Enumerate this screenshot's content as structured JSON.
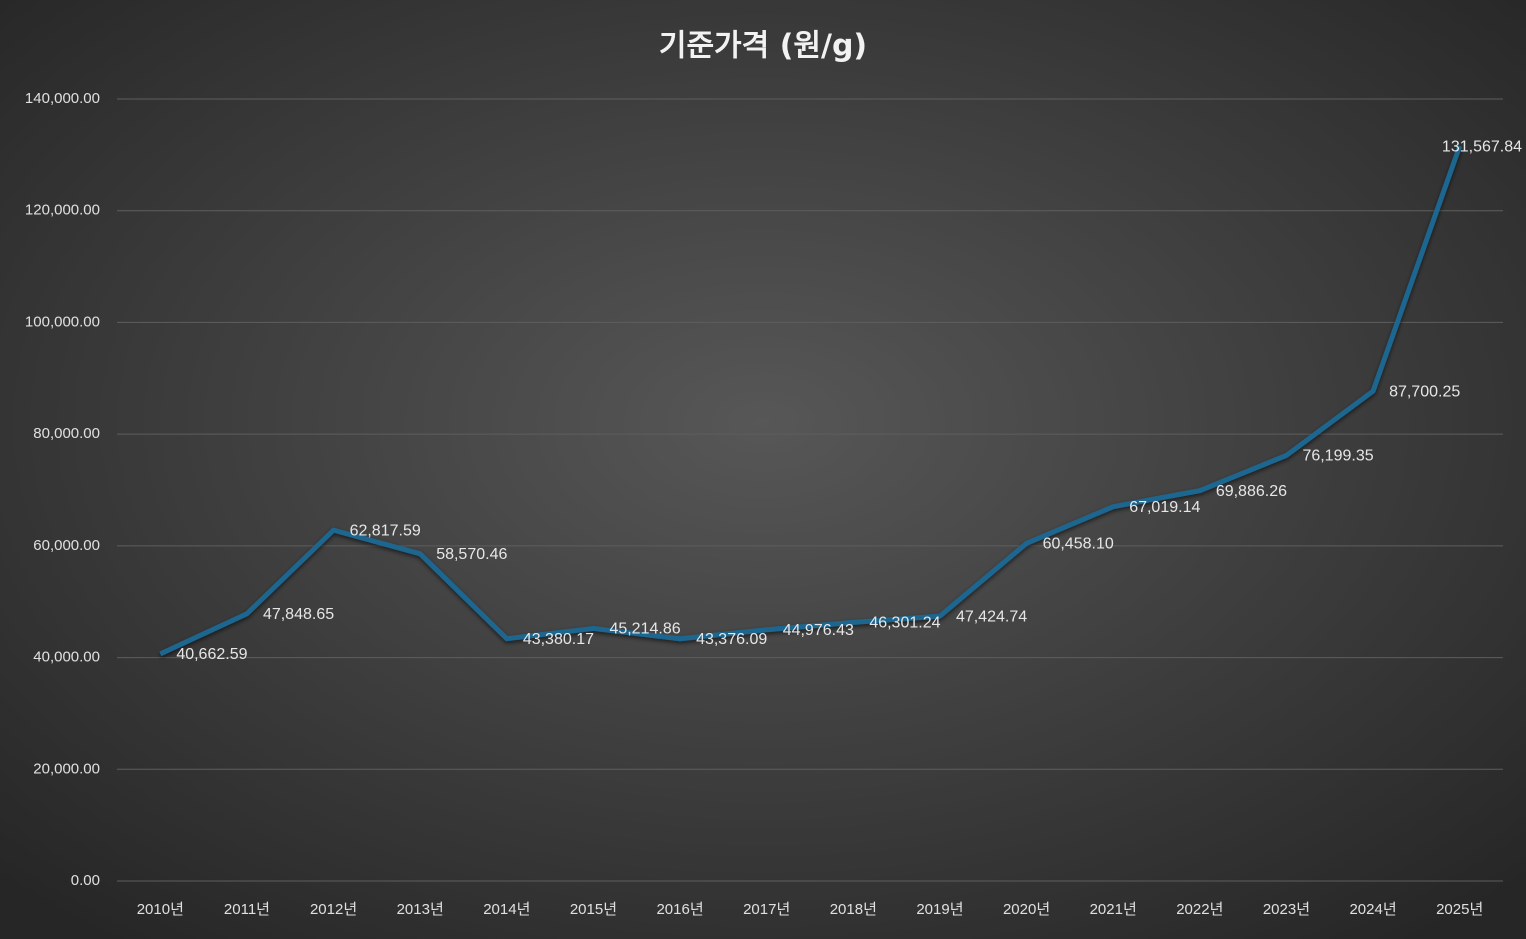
{
  "chart_data": {
    "type": "line",
    "title": "기준가격 (원/g)",
    "categories": [
      "2010년",
      "2011년",
      "2012년",
      "2013년",
      "2014년",
      "2015년",
      "2016년",
      "2017년",
      "2018년",
      "2019년",
      "2020년",
      "2021년",
      "2022년",
      "2023년",
      "2024년",
      "2025년"
    ],
    "values": [
      40662.59,
      47848.65,
      62817.59,
      58570.46,
      43380.17,
      45214.86,
      43376.09,
      44976.43,
      46301.24,
      47424.74,
      60458.1,
      67019.14,
      69886.26,
      76199.35,
      87700.25,
      131567.84
    ],
    "value_labels": [
      "40,662.59",
      "47,848.65",
      "62,817.59",
      "58,570.46",
      "43,380.17",
      "45,214.86",
      "43,376.09",
      "44,976.43",
      "46,301.24",
      "47,424.74",
      "60,458.10",
      "67,019.14",
      "69,886.26",
      "76,199.35",
      "87,700.25",
      "131,567.84"
    ],
    "color": "#1d6690",
    "ylim": [
      0,
      140000
    ],
    "yticks": [
      {
        "value": 0,
        "label": "0.00"
      },
      {
        "value": 20000,
        "label": "20,000.00"
      },
      {
        "value": 40000,
        "label": "40,000.00"
      },
      {
        "value": 60000,
        "label": "60,000.00"
      },
      {
        "value": 80000,
        "label": "80,000.00"
      },
      {
        "value": 100000,
        "label": "100,000.00"
      },
      {
        "value": 120000,
        "label": "120,000.00"
      },
      {
        "value": 140000,
        "label": "140,000.00"
      }
    ],
    "grid": true
  }
}
